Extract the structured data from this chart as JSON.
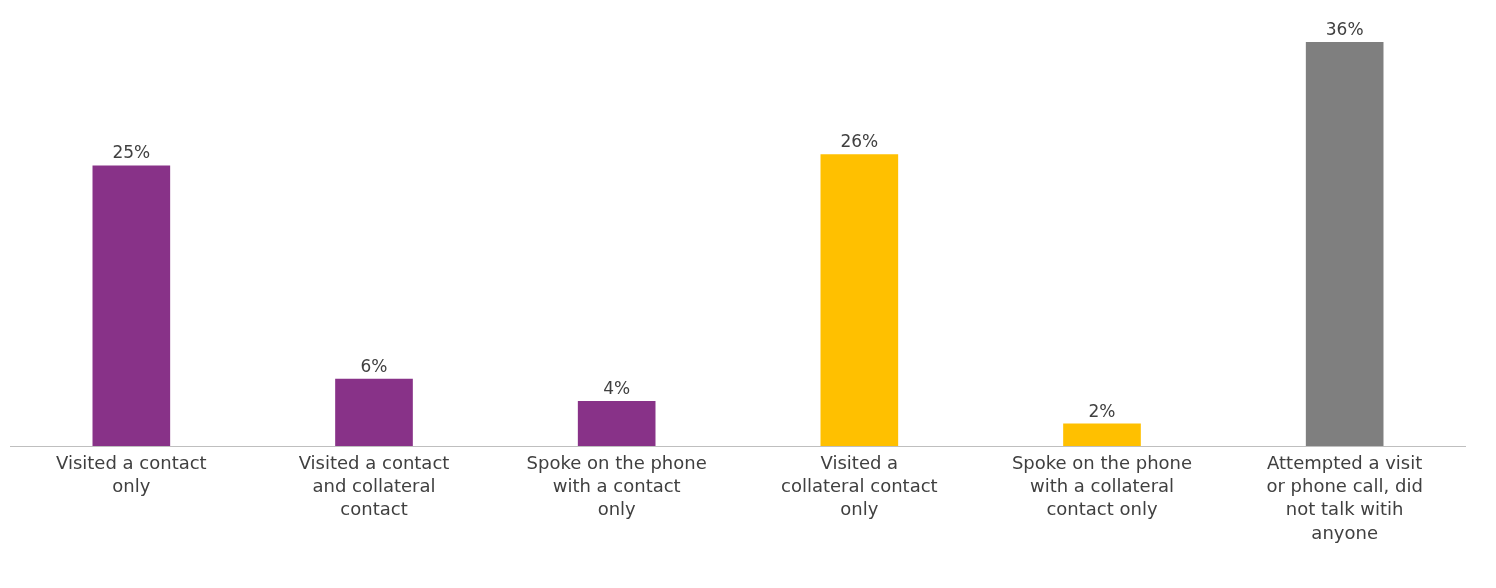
{
  "chart_data": {
    "type": "bar",
    "categories": [
      "Visited a contact only",
      "Visited a contact and collateral contact",
      "Spoke on the phone with a contact only",
      "Visited a collateral contact only",
      "Spoke on the phone with a collateral contact only",
      "Attempted a visit or phone call, did not talk witih anyone"
    ],
    "values": [
      25,
      6,
      4,
      26,
      2,
      36
    ],
    "colors": [
      "#883288",
      "#883288",
      "#883288",
      "#ffc000",
      "#ffc000",
      "#7f7f7f"
    ],
    "value_labels": [
      "25%",
      "6%",
      "4%",
      "26%",
      "2%",
      "36%"
    ]
  }
}
